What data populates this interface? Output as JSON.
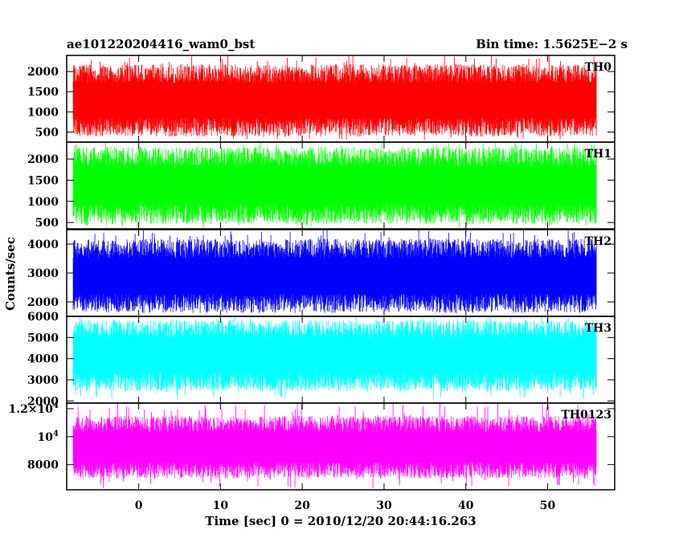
{
  "header": {
    "title": "ae101220204416_wam0_bst",
    "bin_time": "Bin time: 1.5625E−2 s"
  },
  "chart_data": {
    "type": "line",
    "title": "ae101220204416_wam0_bst",
    "subtitle": "Bin time: 1.5625E−2 s",
    "xlabel": "Time [sec] 0 = 2010/12/20 20:44:16.263",
    "ylabel": "Counts/sec",
    "xlim": [
      -8.8,
      58.2
    ],
    "x_data_range": [
      -8.0,
      56.0
    ],
    "xticks": [
      0,
      10,
      20,
      30,
      40,
      50
    ],
    "grid": false,
    "panels": [
      {
        "name": "TH0",
        "color": "#ff0000",
        "ylim": [
          250,
          2400
        ],
        "yticks": [
          {
            "value": 500,
            "label": "500"
          },
          {
            "value": 1000,
            "label": "1000"
          },
          {
            "value": 1500,
            "label": "1500"
          },
          {
            "value": 2000,
            "label": "2000"
          }
        ],
        "band_low": 620,
        "band_high": 1950,
        "dip_min": 300,
        "spike_max": 2400
      },
      {
        "name": "TH1",
        "color": "#00ff00",
        "ylim": [
          350,
          2400
        ],
        "yticks": [
          {
            "value": 500,
            "label": "500"
          },
          {
            "value": 1000,
            "label": "1000"
          },
          {
            "value": 1500,
            "label": "1500"
          },
          {
            "value": 2000,
            "label": "2000"
          }
        ],
        "band_low": 700,
        "band_high": 2050,
        "dip_min": 380,
        "spike_max": 2400
      },
      {
        "name": "TH2",
        "color": "#0000ff",
        "ylim": [
          1500,
          4500
        ],
        "yticks": [
          {
            "value": 2000,
            "label": "2000"
          },
          {
            "value": 3000,
            "label": "3000"
          },
          {
            "value": 4000,
            "label": "4000"
          }
        ],
        "band_low": 1950,
        "band_high": 3850,
        "dip_min": 1650,
        "spike_max": 4500
      },
      {
        "name": "TH3",
        "color": "#00ffff",
        "ylim": [
          1900,
          6000
        ],
        "yticks": [
          {
            "value": 2000,
            "label": "2000"
          },
          {
            "value": 3000,
            "label": "3000"
          },
          {
            "value": 4000,
            "label": "4000"
          },
          {
            "value": 5000,
            "label": "5000"
          },
          {
            "value": 6000,
            "label": "6000"
          }
        ],
        "band_low": 2900,
        "band_high": 5400,
        "dip_min": 2050,
        "spike_max": 6000
      },
      {
        "name": "TH0123",
        "color": "#ff00ff",
        "ylim": [
          6200,
          12400
        ],
        "yticks": [
          {
            "value": 8000,
            "label": "8000"
          },
          {
            "value": 10000,
            "label": "10",
            "exp": "4"
          },
          {
            "value": 12000,
            "label": "1.2×10",
            "exp": "4"
          }
        ],
        "band_low": 7600,
        "band_high": 10900,
        "dip_min": 6300,
        "spike_max": 12400
      }
    ]
  }
}
